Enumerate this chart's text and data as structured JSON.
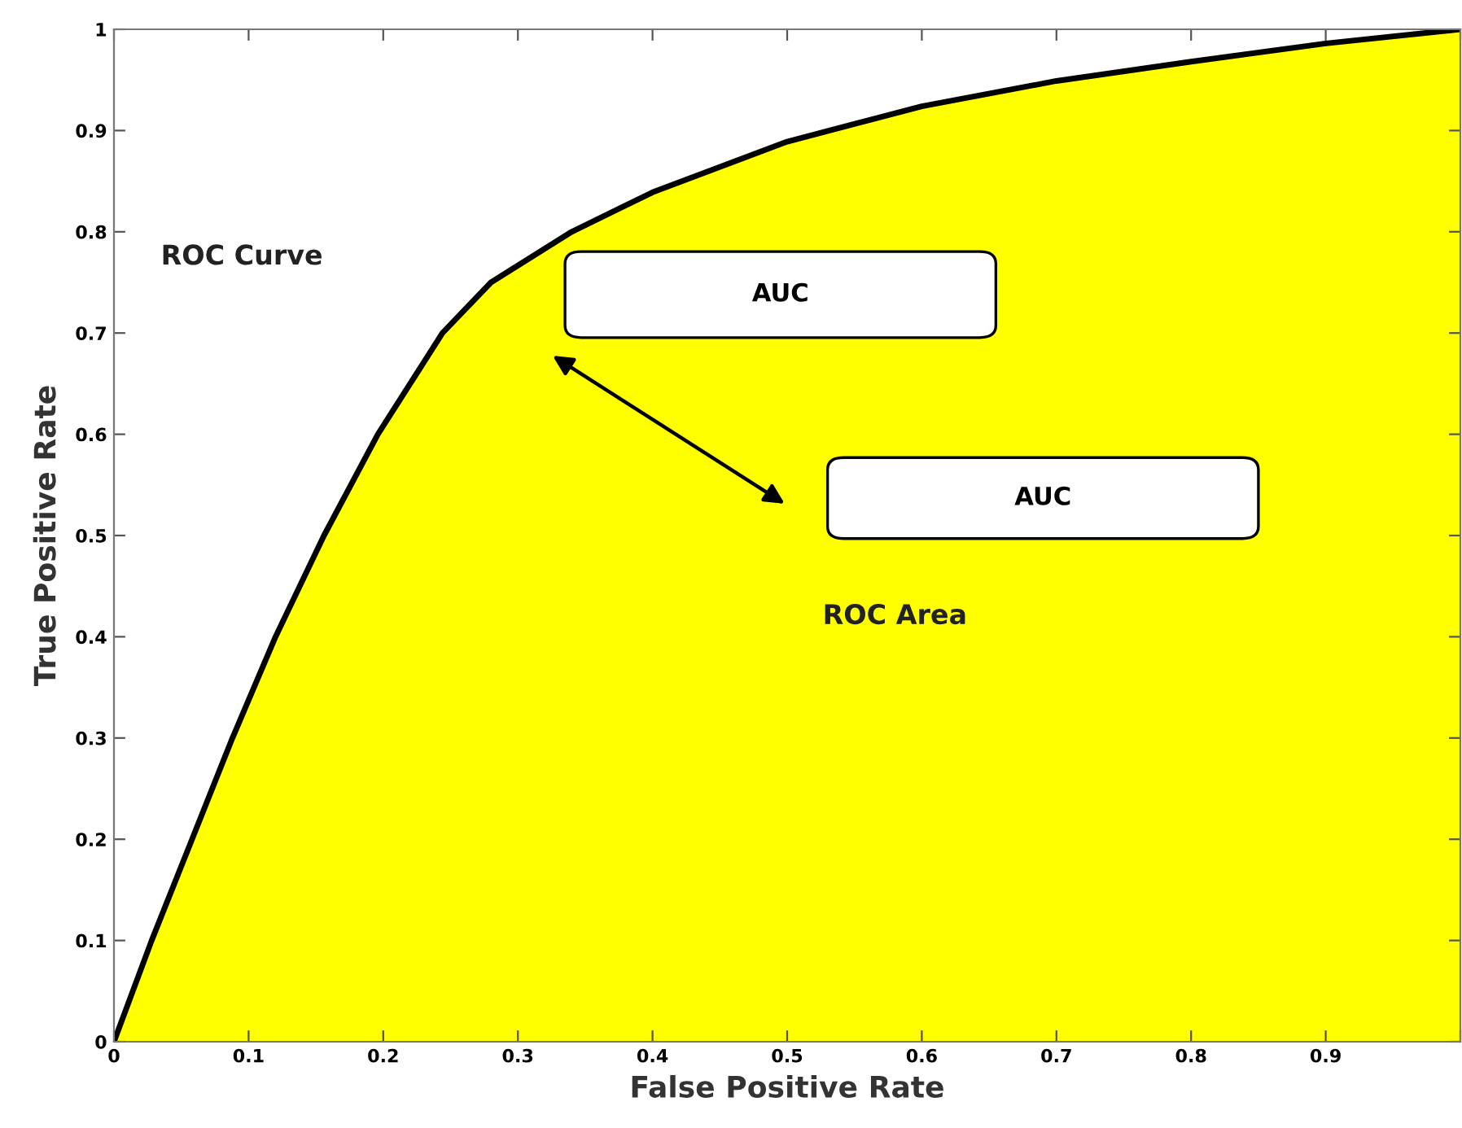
{
  "chart_data": {
    "type": "area",
    "xlabel": "False Positive Rate",
    "ylabel": "True Positive Rate",
    "x": [
      0,
      0.028,
      0.058,
      0.088,
      0.12,
      0.156,
      0.196,
      0.244,
      0.28,
      0.34,
      0.4,
      0.5,
      0.6,
      0.7,
      0.8,
      0.9,
      1
    ],
    "series": [
      {
        "color": "#ffff00",
        "values": [
          0,
          0.1,
          0.2,
          0.3,
          0.4,
          0.5,
          0.6,
          0.7,
          0.75,
          0.8,
          0.839,
          0.889,
          0.924,
          0.949,
          0.968,
          0.986,
          1
        ]
      }
    ],
    "xlim": [
      0,
      1
    ],
    "ylim": [
      0,
      1
    ],
    "xticks": [
      0,
      0.1,
      0.2,
      0.3,
      0.4,
      0.5,
      0.6,
      0.7,
      0.8,
      0.9,
      {
        "value": 1,
        "label": null
      }
    ],
    "yticks": [
      0,
      0.1,
      0.2,
      0.3,
      0.4,
      0.5,
      0.6,
      0.7,
      0.8,
      0.9,
      1
    ],
    "annotations": [
      "ROC Curve",
      "AUC",
      "AUC",
      "ROC Area"
    ]
  }
}
